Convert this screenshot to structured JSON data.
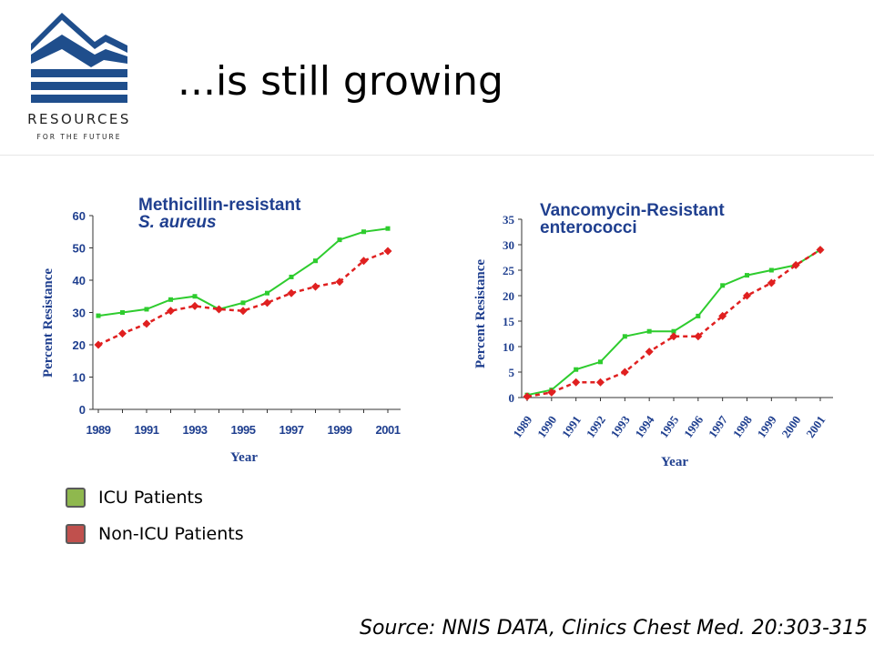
{
  "header": {
    "title": "...is still growing",
    "logo": {
      "name": "RESOURCES",
      "tagline": "FOR THE FUTURE",
      "color": "#1f4e8c"
    }
  },
  "legend": {
    "items": [
      {
        "label": "ICU Patients",
        "color": "#8fb84e"
      },
      {
        "label": "Non-ICU Patients",
        "color": "#c0504d"
      }
    ]
  },
  "source": "Source: NNIS DATA, Clinics Chest Med. 20:303-315",
  "chart_data": [
    {
      "type": "line",
      "title": "Methicillin-resistant",
      "title_line2": "S. aureus",
      "xlabel": "Year",
      "ylabel": "Percent Resistance",
      "x": [
        1989,
        1990,
        1991,
        1992,
        1993,
        1994,
        1995,
        1996,
        1997,
        1998,
        1999,
        2000,
        2001
      ],
      "xtick_labels": [
        "1989",
        "1991",
        "1993",
        "1995",
        "1997",
        "1999",
        "2001"
      ],
      "ylim": [
        0,
        60
      ],
      "yticks": [
        "0",
        "10",
        "20",
        "30",
        "40",
        "50",
        "60"
      ],
      "grid": false,
      "series": [
        {
          "name": "ICU Patients",
          "color": "#2ecc2e",
          "style": "solid",
          "marker": "square",
          "values": [
            29,
            30,
            31,
            34,
            35,
            31,
            33,
            36,
            41,
            46,
            52.5,
            55,
            56
          ]
        },
        {
          "name": "Non-ICU Patients",
          "color": "#e02020",
          "style": "dashed",
          "marker": "diamond",
          "values": [
            20,
            23.5,
            26.5,
            30.5,
            32,
            31,
            30.5,
            33,
            36,
            38,
            39.5,
            46,
            49
          ]
        }
      ]
    },
    {
      "type": "line",
      "title": "Vancomycin-Resistant",
      "title_line2": "enterococci",
      "xlabel": "Year",
      "ylabel": "Percent Resistance",
      "x": [
        1989,
        1990,
        1991,
        1992,
        1993,
        1994,
        1995,
        1996,
        1997,
        1998,
        1999,
        2000,
        2001
      ],
      "xtick_labels": [
        "1989",
        "1990",
        "1991",
        "1992",
        "1993",
        "1994",
        "1995",
        "1996",
        "1997",
        "1998",
        "1999",
        "2000",
        "2001"
      ],
      "ylim": [
        0,
        35
      ],
      "yticks": [
        "0",
        "5",
        "10",
        "15",
        "20",
        "25",
        "30",
        "35"
      ],
      "grid": false,
      "series": [
        {
          "name": "ICU Patients",
          "color": "#2ecc2e",
          "style": "solid",
          "marker": "square",
          "values": [
            0.5,
            1.5,
            5.5,
            7,
            12,
            13,
            13,
            16,
            22,
            24,
            25,
            26,
            29
          ]
        },
        {
          "name": "Non-ICU Patients",
          "color": "#e02020",
          "style": "dashed",
          "marker": "diamond",
          "values": [
            0.2,
            1,
            3,
            3,
            5,
            9,
            12,
            12,
            16,
            20,
            22.5,
            26,
            29
          ]
        }
      ]
    }
  ]
}
